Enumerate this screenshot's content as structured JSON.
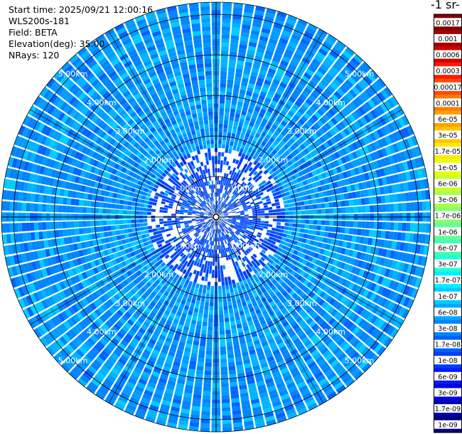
{
  "header": {
    "start_time": "Start time: 2025/09/21 12:00:16",
    "instrument": "WLS200s-181",
    "field": "Field: BETA",
    "elevation": "Elevation(deg): 35.00",
    "nrays": "NRays: 120"
  },
  "colorbar": {
    "title_fragment": "-1 sr-",
    "labels": [
      "0.0017",
      "0.001",
      "0.0006",
      "0.0003",
      "0.00017",
      "0.0001",
      "6e-05",
      "3e-05",
      "1.7e-05",
      "1e-05",
      "6e-06",
      "3e-06",
      "1.7e-06",
      "1e-06",
      "6e-07",
      "3e-07",
      "1.7e-07",
      "1e-07",
      "6e-08",
      "3e-08",
      "1.7e-08",
      "1e-08",
      "6e-09",
      "3e-09",
      "1.7e-09",
      "1e-09"
    ],
    "colors": [
      "#7f0000",
      "#a50000",
      "#d40000",
      "#ff1a00",
      "#ff4a00",
      "#ff7a00",
      "#ffa200",
      "#ffc600",
      "#ffe800",
      "#eaff0c",
      "#cbff2c",
      "#a8ff4f",
      "#84ff73",
      "#63ff93",
      "#40ffb6",
      "#20ffd6",
      "#00f0ff",
      "#00ccff",
      "#00a8ff",
      "#0084ff",
      "#0060ff",
      "#003cff",
      "#0018ff",
      "#0000e8",
      "#0000b2",
      "#00007f"
    ]
  },
  "chart_data": {
    "type": "ppi",
    "field": "BETA",
    "elevation_deg": 35.0,
    "n_rays": 120,
    "range_rings_km": [
      1,
      2,
      3,
      4,
      5
    ],
    "ring_labels": [
      "1.00km",
      "2.00km",
      "3.00km",
      "4.00km",
      "5.00km"
    ],
    "max_range_km": 5.3,
    "scale": "log",
    "value_range": [
      1e-09,
      0.0017
    ],
    "dominant_range": [
      "1e-08",
      "1e-07"
    ]
  }
}
